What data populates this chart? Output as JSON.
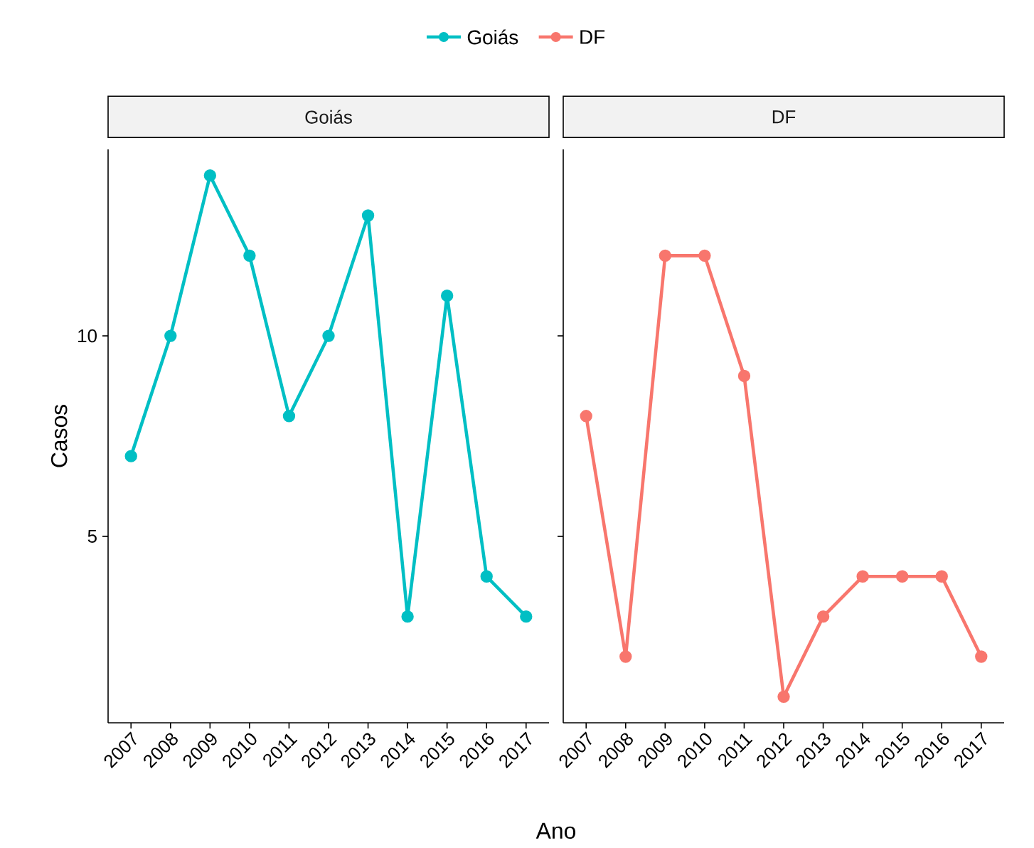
{
  "chart_data": [
    {
      "type": "line",
      "title": "Goiás",
      "xlabel": "Ano",
      "ylabel": "Casos",
      "x": [
        2007,
        2008,
        2009,
        2010,
        2011,
        2012,
        2013,
        2014,
        2015,
        2016,
        2017
      ],
      "xlim": [
        2006.42,
        2017.58
      ],
      "ylim": [
        0.35,
        14.65
      ],
      "xticks": [
        2007,
        2008,
        2009,
        2010,
        2011,
        2012,
        2013,
        2014,
        2015,
        2016,
        2017
      ],
      "yticks": [
        5,
        10
      ],
      "marker": "circle",
      "line_style": "solid",
      "legend": "top",
      "grid": false,
      "series": [
        {
          "name": "Goiás",
          "color": "#00bfc4",
          "values": [
            7,
            10,
            14,
            12,
            8,
            10,
            13,
            3,
            11,
            4,
            3
          ]
        }
      ]
    },
    {
      "type": "line",
      "title": "DF",
      "x": [
        2007,
        2008,
        2009,
        2010,
        2011,
        2012,
        2013,
        2014,
        2015,
        2016,
        2017
      ],
      "xlim": [
        2006.42,
        2017.58
      ],
      "ylim": [
        0.35,
        14.65
      ],
      "xticks": [
        2007,
        2008,
        2009,
        2010,
        2011,
        2012,
        2013,
        2014,
        2015,
        2016,
        2017
      ],
      "yticks": [
        5,
        10
      ],
      "marker": "circle",
      "line_style": "solid",
      "legend": "top",
      "grid": false,
      "tick_labels": "x",
      "series": [
        {
          "name": "DF",
          "color": "#f8766d",
          "values": [
            8,
            2,
            12,
            12,
            9,
            1,
            3,
            4,
            4,
            4,
            2
          ]
        }
      ]
    }
  ]
}
